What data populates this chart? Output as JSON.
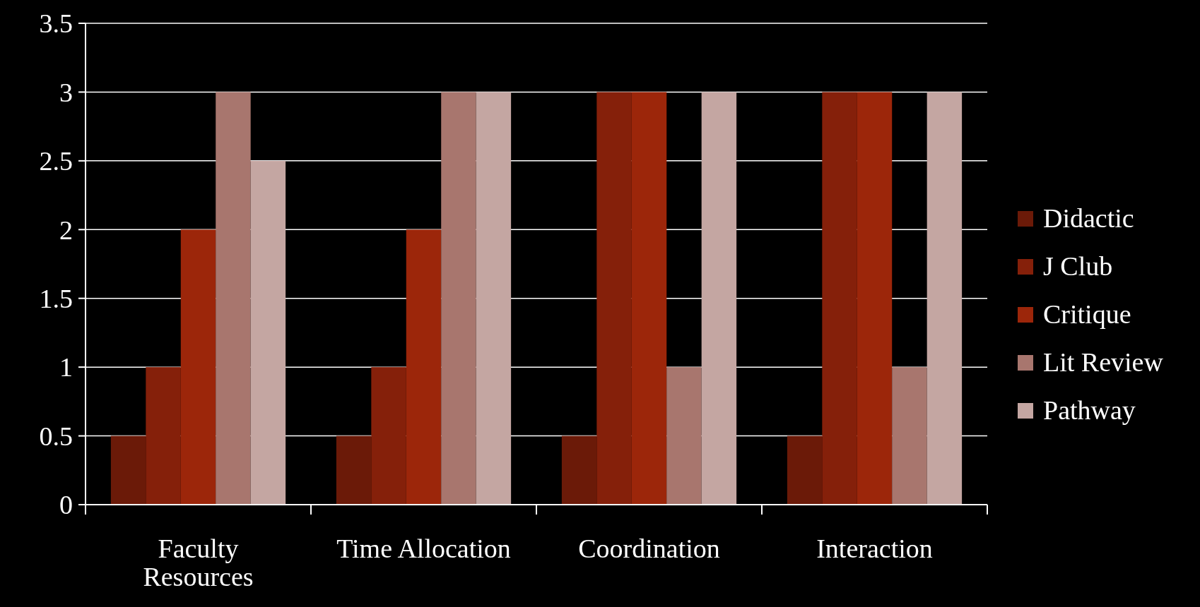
{
  "chart_data": {
    "type": "bar",
    "categories": [
      "Faculty Resources",
      "Time Allocation",
      "Coordination",
      "Interaction"
    ],
    "series": [
      {
        "name": "Didactic",
        "color": "#6b1a08",
        "values": [
          0.5,
          0.5,
          0.5,
          0.5
        ]
      },
      {
        "name": "J Club",
        "color": "#85200a",
        "values": [
          1,
          1,
          3,
          3
        ]
      },
      {
        "name": "Critique",
        "color": "#9c260a",
        "values": [
          2,
          2,
          3,
          3
        ]
      },
      {
        "name": "Lit Review",
        "color": "#a8766e",
        "values": [
          3,
          3,
          1,
          1
        ]
      },
      {
        "name": "Pathway",
        "color": "#c4a6a2",
        "values": [
          2.5,
          3,
          3,
          3
        ]
      }
    ],
    "ylim": [
      0,
      3.5
    ],
    "yticks": [
      0,
      0.5,
      1,
      1.5,
      2,
      2.5,
      3,
      3.5
    ],
    "grid": "y",
    "legend": "right"
  }
}
